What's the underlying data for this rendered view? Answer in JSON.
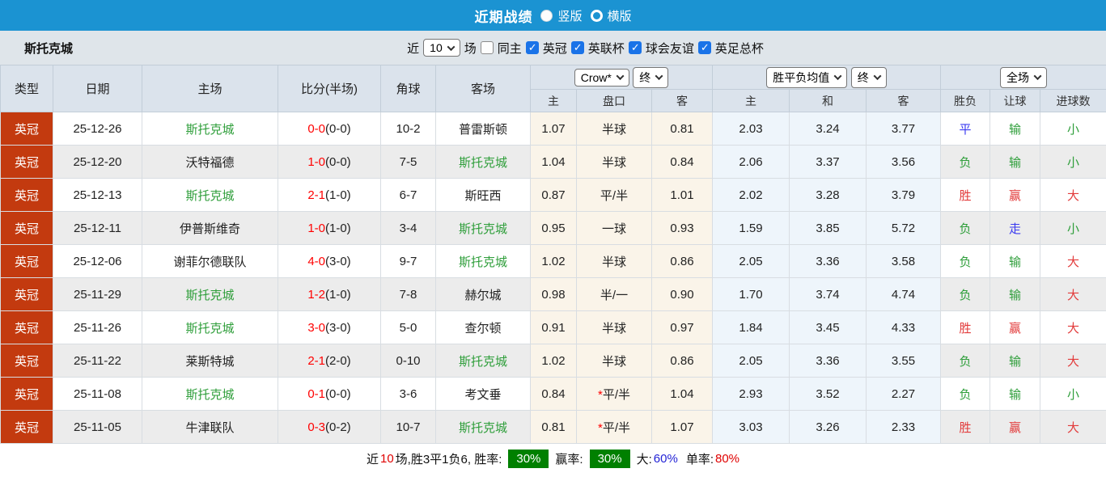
{
  "title_bar": {
    "title": "近期战绩",
    "radios": [
      {
        "label": "竖版",
        "selected": true
      },
      {
        "label": "横版",
        "selected": false
      }
    ]
  },
  "filter_bar": {
    "team": "斯托克城",
    "near_label": "近",
    "count_value": "10",
    "matches_label": "场",
    "same_home": {
      "label": "同主",
      "checked": false
    },
    "competitions": [
      {
        "label": "英冠",
        "checked": true
      },
      {
        "label": "英联杯",
        "checked": true
      },
      {
        "label": "球会友谊",
        "checked": true
      },
      {
        "label": "英足总杯",
        "checked": true
      }
    ]
  },
  "table": {
    "headers": {
      "type": "类型",
      "date": "日期",
      "home": "主场",
      "score": "比分(半场)",
      "corner": "角球",
      "away": "客场",
      "odds_home": "主",
      "odds_handicap": "盘口",
      "odds_away": "客",
      "avg_home": "主",
      "avg_draw": "和",
      "avg_away": "客",
      "result": "胜负",
      "handicap_result": "让球",
      "goals_result": "进球数"
    },
    "selectors": {
      "odds_company": "Crow*",
      "odds_time": "终",
      "avg_type": "胜平负均值",
      "avg_time": "终",
      "scope": "全场"
    },
    "rows": [
      {
        "type": "英冠",
        "date": "25-12-26",
        "home": {
          "text": "斯托克城",
          "color": "green"
        },
        "score": {
          "ft": "0-0",
          "ht": "(0-0)"
        },
        "corner": "10-2",
        "away": {
          "text": "普雷斯顿",
          "color": "black"
        },
        "odds_home": "1.07",
        "handicap": {
          "star": false,
          "text": "半球"
        },
        "odds_away": "0.81",
        "avg_home": "2.03",
        "avg_draw": "3.24",
        "avg_away": "3.77",
        "result": {
          "text": "平",
          "color": "blue"
        },
        "handicap_result": {
          "text": "输",
          "color": "green"
        },
        "goals_result": {
          "text": "小",
          "color": "green"
        }
      },
      {
        "type": "英冠",
        "date": "25-12-20",
        "home": {
          "text": "沃特福德",
          "color": "black"
        },
        "score": {
          "ft": "1-0",
          "ht": "(0-0)"
        },
        "corner": "7-5",
        "away": {
          "text": "斯托克城",
          "color": "green"
        },
        "odds_home": "1.04",
        "handicap": {
          "star": false,
          "text": "半球"
        },
        "odds_away": "0.84",
        "avg_home": "2.06",
        "avg_draw": "3.37",
        "avg_away": "3.56",
        "result": {
          "text": "负",
          "color": "green"
        },
        "handicap_result": {
          "text": "输",
          "color": "green"
        },
        "goals_result": {
          "text": "小",
          "color": "green"
        }
      },
      {
        "type": "英冠",
        "date": "25-12-13",
        "home": {
          "text": "斯托克城",
          "color": "green"
        },
        "score": {
          "ft": "2-1",
          "ht": "(1-0)"
        },
        "corner": "6-7",
        "away": {
          "text": "斯旺西",
          "color": "black"
        },
        "odds_home": "0.87",
        "handicap": {
          "star": false,
          "text": "平/半"
        },
        "odds_away": "1.01",
        "avg_home": "2.02",
        "avg_draw": "3.28",
        "avg_away": "3.79",
        "result": {
          "text": "胜",
          "color": "red"
        },
        "handicap_result": {
          "text": "赢",
          "color": "red"
        },
        "goals_result": {
          "text": "大",
          "color": "red"
        }
      },
      {
        "type": "英冠",
        "date": "25-12-11",
        "home": {
          "text": "伊普斯维奇",
          "color": "black"
        },
        "score": {
          "ft": "1-0",
          "ht": "(1-0)"
        },
        "corner": "3-4",
        "away": {
          "text": "斯托克城",
          "color": "green"
        },
        "odds_home": "0.95",
        "handicap": {
          "star": false,
          "text": "一球"
        },
        "odds_away": "0.93",
        "avg_home": "1.59",
        "avg_draw": "3.85",
        "avg_away": "5.72",
        "result": {
          "text": "负",
          "color": "green"
        },
        "handicap_result": {
          "text": "走",
          "color": "blue"
        },
        "goals_result": {
          "text": "小",
          "color": "green"
        }
      },
      {
        "type": "英冠",
        "date": "25-12-06",
        "home": {
          "text": "谢菲尔德联队",
          "color": "black"
        },
        "score": {
          "ft": "4-0",
          "ht": "(3-0)"
        },
        "corner": "9-7",
        "away": {
          "text": "斯托克城",
          "color": "green"
        },
        "odds_home": "1.02",
        "handicap": {
          "star": false,
          "text": "半球"
        },
        "odds_away": "0.86",
        "avg_home": "2.05",
        "avg_draw": "3.36",
        "avg_away": "3.58",
        "result": {
          "text": "负",
          "color": "green"
        },
        "handicap_result": {
          "text": "输",
          "color": "green"
        },
        "goals_result": {
          "text": "大",
          "color": "red"
        }
      },
      {
        "type": "英冠",
        "date": "25-11-29",
        "home": {
          "text": "斯托克城",
          "color": "green"
        },
        "score": {
          "ft": "1-2",
          "ht": "(1-0)"
        },
        "corner": "7-8",
        "away": {
          "text": "赫尔城",
          "color": "black"
        },
        "odds_home": "0.98",
        "handicap": {
          "star": false,
          "text": "半/一"
        },
        "odds_away": "0.90",
        "avg_home": "1.70",
        "avg_draw": "3.74",
        "avg_away": "4.74",
        "result": {
          "text": "负",
          "color": "green"
        },
        "handicap_result": {
          "text": "输",
          "color": "green"
        },
        "goals_result": {
          "text": "大",
          "color": "red"
        }
      },
      {
        "type": "英冠",
        "date": "25-11-26",
        "home": {
          "text": "斯托克城",
          "color": "green"
        },
        "score": {
          "ft": "3-0",
          "ht": "(3-0)"
        },
        "corner": "5-0",
        "away": {
          "text": "查尔顿",
          "color": "black"
        },
        "odds_home": "0.91",
        "handicap": {
          "star": false,
          "text": "半球"
        },
        "odds_away": "0.97",
        "avg_home": "1.84",
        "avg_draw": "3.45",
        "avg_away": "4.33",
        "result": {
          "text": "胜",
          "color": "red"
        },
        "handicap_result": {
          "text": "赢",
          "color": "red"
        },
        "goals_result": {
          "text": "大",
          "color": "red"
        }
      },
      {
        "type": "英冠",
        "date": "25-11-22",
        "home": {
          "text": "莱斯特城",
          "color": "black"
        },
        "score": {
          "ft": "2-1",
          "ht": "(2-0)"
        },
        "corner": "0-10",
        "away": {
          "text": "斯托克城",
          "color": "green"
        },
        "odds_home": "1.02",
        "handicap": {
          "star": false,
          "text": "半球"
        },
        "odds_away": "0.86",
        "avg_home": "2.05",
        "avg_draw": "3.36",
        "avg_away": "3.55",
        "result": {
          "text": "负",
          "color": "green"
        },
        "handicap_result": {
          "text": "输",
          "color": "green"
        },
        "goals_result": {
          "text": "大",
          "color": "red"
        }
      },
      {
        "type": "英冠",
        "date": "25-11-08",
        "home": {
          "text": "斯托克城",
          "color": "green"
        },
        "score": {
          "ft": "0-1",
          "ht": "(0-0)"
        },
        "corner": "3-6",
        "away": {
          "text": "考文垂",
          "color": "black"
        },
        "odds_home": "0.84",
        "handicap": {
          "star": true,
          "text": "平/半"
        },
        "odds_away": "1.04",
        "avg_home": "2.93",
        "avg_draw": "3.52",
        "avg_away": "2.27",
        "result": {
          "text": "负",
          "color": "green"
        },
        "handicap_result": {
          "text": "输",
          "color": "green"
        },
        "goals_result": {
          "text": "小",
          "color": "green"
        }
      },
      {
        "type": "英冠",
        "date": "25-11-05",
        "home": {
          "text": "牛津联队",
          "color": "black"
        },
        "score": {
          "ft": "0-3",
          "ht": "(0-2)"
        },
        "corner": "10-7",
        "away": {
          "text": "斯托克城",
          "color": "green"
        },
        "odds_home": "0.81",
        "handicap": {
          "star": true,
          "text": "平/半"
        },
        "odds_away": "1.07",
        "avg_home": "3.03",
        "avg_draw": "3.26",
        "avg_away": "2.33",
        "result": {
          "text": "胜",
          "color": "red"
        },
        "handicap_result": {
          "text": "赢",
          "color": "red"
        },
        "goals_result": {
          "text": "大",
          "color": "red"
        }
      }
    ]
  },
  "summary": {
    "near_label": "近",
    "count": "10",
    "record_text": "场,胜3平1负6, 胜率:",
    "win_rate": "30%",
    "cover_label": "赢率:",
    "cover_rate": "30%",
    "big_label": "大:",
    "big_rate": "60%",
    "single_label": "单率:",
    "single_rate": "80%"
  },
  "colors": {
    "topbar_blue": "#1b93d2",
    "type_red": "#c33a0f",
    "team_green": "#2e9e3a",
    "score_red": "#ff0000",
    "badge_green": "#008000"
  }
}
